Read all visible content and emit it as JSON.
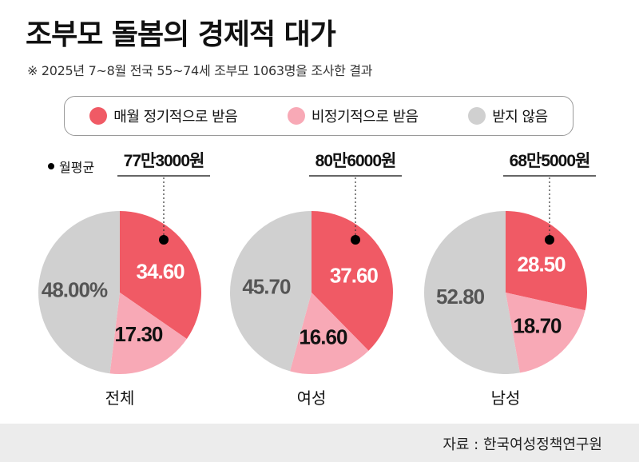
{
  "header": {
    "title": "조부모 돌봄의 경제적 대가",
    "subtitle": "※ 2025년 7~8월 전국 55~74세 조부모 1063명을 조사한 결과"
  },
  "legend": [
    {
      "label": "매월 정기적으로 받음",
      "color": "#f05a65"
    },
    {
      "label": "비정기적으로 받음",
      "color": "#f8a9b6"
    },
    {
      "label": "받지 않음",
      "color": "#d0d0d0"
    }
  ],
  "avg_label": "월평균",
  "colors": {
    "regular": "#f05a65",
    "irregular": "#f8a9b6",
    "none": "#d0d0d0"
  },
  "chart_data": [
    {
      "type": "pie",
      "group": "전체",
      "avg": "77만3000원",
      "labels": [
        "매월 정기적으로 받음",
        "비정기적으로 받음",
        "받지 않음"
      ],
      "values": [
        34.6,
        17.3,
        48.0
      ],
      "value_labels": [
        "34.60",
        "17.30",
        "48.00%"
      ]
    },
    {
      "type": "pie",
      "group": "여성",
      "avg": "80만6000원",
      "labels": [
        "매월 정기적으로 받음",
        "비정기적으로 받음",
        "받지 않음"
      ],
      "values": [
        37.6,
        16.6,
        45.7
      ],
      "value_labels": [
        "37.60",
        "16.60",
        "45.70"
      ]
    },
    {
      "type": "pie",
      "group": "남성",
      "avg": "68만5000원",
      "labels": [
        "매월 정기적으로 받음",
        "비정기적으로 받음",
        "받지 않음"
      ],
      "values": [
        28.5,
        18.7,
        52.8
      ],
      "value_labels": [
        "28.50",
        "18.70",
        "52.80"
      ]
    }
  ],
  "footer": {
    "source": "자료 : 한국여성정책연구원"
  }
}
